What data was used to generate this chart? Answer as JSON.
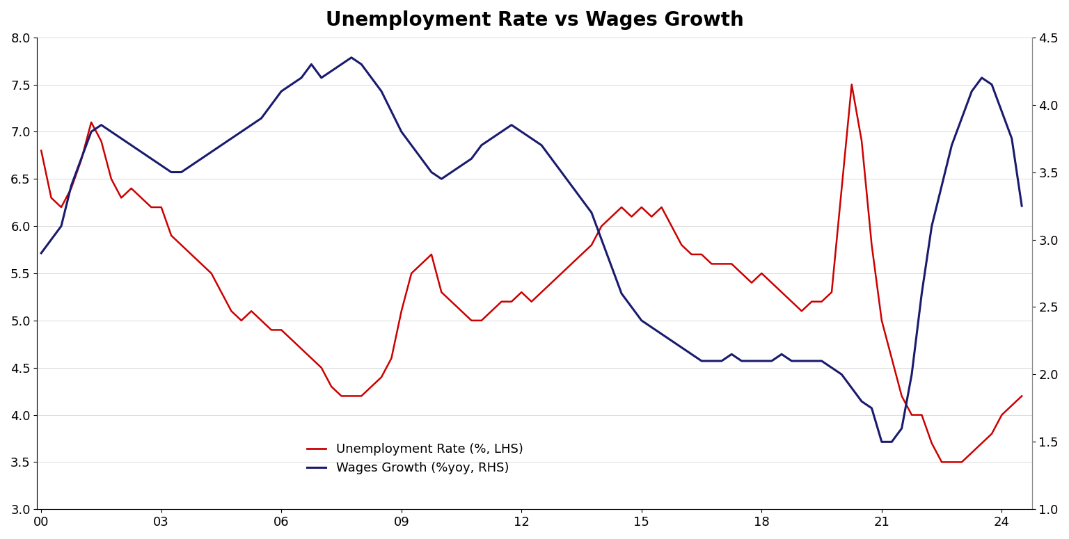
{
  "title": "Unemployment Rate vs Wages Growth",
  "title_fontsize": 20,
  "background_color": "#ffffff",
  "lhs_label": "Unemployment Rate (%, LHS)",
  "rhs_label": "Wages Growth (%yoy, RHS)",
  "lhs_color": "#cc0000",
  "rhs_color": "#1a1a6e",
  "lhs_ylim": [
    3.0,
    8.0
  ],
  "rhs_ylim": [
    1.0,
    4.5
  ],
  "lhs_yticks": [
    3.0,
    3.5,
    4.0,
    4.5,
    5.0,
    5.5,
    6.0,
    6.5,
    7.0,
    7.5,
    8.0
  ],
  "rhs_yticks": [
    1.0,
    1.5,
    2.0,
    2.5,
    3.0,
    3.5,
    4.0,
    4.5
  ],
  "xtick_labels": [
    "00",
    "03",
    "06",
    "09",
    "12",
    "15",
    "18",
    "21",
    "24"
  ],
  "xtick_positions": [
    2000,
    2003,
    2006,
    2009,
    2012,
    2015,
    2018,
    2021,
    2024
  ],
  "unemployment": {
    "x": [
      2000.0,
      2000.25,
      2000.5,
      2000.75,
      2001.0,
      2001.25,
      2001.5,
      2001.75,
      2002.0,
      2002.25,
      2002.5,
      2002.75,
      2003.0,
      2003.25,
      2003.5,
      2003.75,
      2004.0,
      2004.25,
      2004.5,
      2004.75,
      2005.0,
      2005.25,
      2005.5,
      2005.75,
      2006.0,
      2006.25,
      2006.5,
      2006.75,
      2007.0,
      2007.25,
      2007.5,
      2007.75,
      2008.0,
      2008.25,
      2008.5,
      2008.75,
      2009.0,
      2009.25,
      2009.5,
      2009.75,
      2010.0,
      2010.25,
      2010.5,
      2010.75,
      2011.0,
      2011.25,
      2011.5,
      2011.75,
      2012.0,
      2012.25,
      2012.5,
      2012.75,
      2013.0,
      2013.25,
      2013.5,
      2013.75,
      2014.0,
      2014.25,
      2014.5,
      2014.75,
      2015.0,
      2015.25,
      2015.5,
      2015.75,
      2016.0,
      2016.25,
      2016.5,
      2016.75,
      2017.0,
      2017.25,
      2017.5,
      2017.75,
      2018.0,
      2018.25,
      2018.5,
      2018.75,
      2019.0,
      2019.25,
      2019.5,
      2019.75,
      2020.0,
      2020.25,
      2020.5,
      2020.75,
      2021.0,
      2021.25,
      2021.5,
      2021.75,
      2022.0,
      2022.25,
      2022.5,
      2022.75,
      2023.0,
      2023.25,
      2023.5,
      2023.75,
      2024.0,
      2024.25,
      2024.5
    ],
    "y": [
      6.8,
      6.3,
      6.2,
      6.4,
      6.7,
      7.1,
      6.9,
      6.5,
      6.3,
      6.4,
      6.3,
      6.2,
      6.2,
      5.9,
      5.8,
      5.7,
      5.6,
      5.5,
      5.3,
      5.1,
      5.0,
      5.1,
      5.0,
      4.9,
      4.9,
      4.8,
      4.7,
      4.6,
      4.5,
      4.3,
      4.2,
      4.2,
      4.2,
      4.3,
      4.4,
      4.6,
      5.1,
      5.5,
      5.6,
      5.7,
      5.3,
      5.2,
      5.1,
      5.0,
      5.0,
      5.1,
      5.2,
      5.2,
      5.3,
      5.2,
      5.3,
      5.4,
      5.5,
      5.6,
      5.7,
      5.8,
      6.0,
      6.1,
      6.2,
      6.1,
      6.2,
      6.1,
      6.2,
      6.0,
      5.8,
      5.7,
      5.7,
      5.6,
      5.6,
      5.6,
      5.5,
      5.4,
      5.5,
      5.4,
      5.3,
      5.2,
      5.1,
      5.2,
      5.2,
      5.3,
      6.4,
      7.5,
      6.9,
      5.8,
      5.0,
      4.6,
      4.2,
      4.0,
      4.0,
      3.7,
      3.5,
      3.5,
      3.5,
      3.6,
      3.7,
      3.8,
      4.0,
      4.1,
      4.2
    ]
  },
  "wages": {
    "x": [
      2000.0,
      2000.25,
      2000.5,
      2000.75,
      2001.0,
      2001.25,
      2001.5,
      2001.75,
      2002.0,
      2002.25,
      2002.5,
      2002.75,
      2003.0,
      2003.25,
      2003.5,
      2003.75,
      2004.0,
      2004.25,
      2004.5,
      2004.75,
      2005.0,
      2005.25,
      2005.5,
      2005.75,
      2006.0,
      2006.25,
      2006.5,
      2006.75,
      2007.0,
      2007.25,
      2007.5,
      2007.75,
      2008.0,
      2008.25,
      2008.5,
      2008.75,
      2009.0,
      2009.25,
      2009.5,
      2009.75,
      2010.0,
      2010.25,
      2010.5,
      2010.75,
      2011.0,
      2011.25,
      2011.5,
      2011.75,
      2012.0,
      2012.25,
      2012.5,
      2012.75,
      2013.0,
      2013.25,
      2013.5,
      2013.75,
      2014.0,
      2014.25,
      2014.5,
      2014.75,
      2015.0,
      2015.25,
      2015.5,
      2015.75,
      2016.0,
      2016.25,
      2016.5,
      2016.75,
      2017.0,
      2017.25,
      2017.5,
      2017.75,
      2018.0,
      2018.25,
      2018.5,
      2018.75,
      2019.0,
      2019.25,
      2019.5,
      2019.75,
      2020.0,
      2020.25,
      2020.5,
      2020.75,
      2021.0,
      2021.25,
      2021.5,
      2021.75,
      2022.0,
      2022.25,
      2022.5,
      2022.75,
      2023.0,
      2023.25,
      2023.5,
      2023.75,
      2024.0,
      2024.25,
      2024.5
    ],
    "y": [
      2.9,
      3.0,
      3.1,
      3.4,
      3.6,
      3.8,
      3.85,
      3.8,
      3.75,
      3.7,
      3.65,
      3.6,
      3.55,
      3.5,
      3.5,
      3.55,
      3.6,
      3.65,
      3.7,
      3.75,
      3.8,
      3.85,
      3.9,
      4.0,
      4.1,
      4.15,
      4.2,
      4.3,
      4.2,
      4.25,
      4.3,
      4.35,
      4.3,
      4.2,
      4.1,
      3.95,
      3.8,
      3.7,
      3.6,
      3.5,
      3.45,
      3.5,
      3.55,
      3.6,
      3.7,
      3.75,
      3.8,
      3.85,
      3.8,
      3.75,
      3.7,
      3.6,
      3.5,
      3.4,
      3.3,
      3.2,
      3.0,
      2.8,
      2.6,
      2.5,
      2.4,
      2.35,
      2.3,
      2.25,
      2.2,
      2.15,
      2.1,
      2.1,
      2.1,
      2.15,
      2.1,
      2.1,
      2.1,
      2.1,
      2.15,
      2.1,
      2.1,
      2.1,
      2.1,
      2.05,
      2.0,
      1.9,
      1.8,
      1.75,
      1.5,
      1.5,
      1.6,
      2.0,
      2.6,
      3.1,
      3.4,
      3.7,
      3.9,
      4.1,
      4.2,
      4.15,
      3.95,
      3.75,
      3.25
    ]
  }
}
